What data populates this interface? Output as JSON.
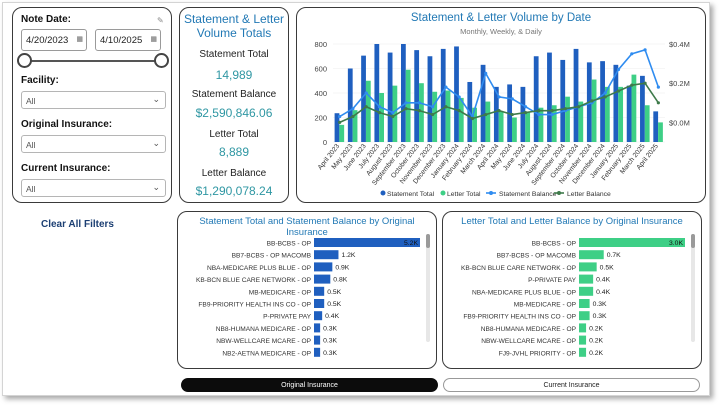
{
  "filters": {
    "note_date_label": "Note Date:",
    "start_date": "4/20/2023",
    "end_date": "4/10/2025",
    "facility_label": "Facility:",
    "facility_value": "All",
    "orig_ins_label": "Original Insurance:",
    "orig_ins_value": "All",
    "curr_ins_label": "Current Insurance:",
    "curr_ins_value": "All",
    "clear_label": "Clear All Filters"
  },
  "totals": {
    "title_line1": "Statement & Letter",
    "title_line2": "Volume Totals",
    "statement_total_label": "Statement Total",
    "statement_total_value": "14,989",
    "statement_balance_label": "Statement Balance",
    "statement_balance_value": "$2,590,846.06",
    "letter_total_label": "Letter Total",
    "letter_total_value": "8,889",
    "letter_balance_label": "Letter Balance",
    "letter_balance_value": "$1,290,078.24"
  },
  "colors": {
    "statement": "#1f5fbf",
    "letter": "#3ecf86",
    "statement_line": "#2f8cf0",
    "letter_line": "#3e7a4a",
    "title": "#2279b5",
    "value": "#2f97a3"
  },
  "chart_data": [
    {
      "type": "bar",
      "title": "Statement & Letter Volume by Date",
      "subtitle": "Monthly, Weekly, & Daily",
      "categories": [
        "April 2023",
        "May 2023",
        "June 2023",
        "July 2023",
        "August 2023",
        "September 2023",
        "October 2023",
        "November 2023",
        "December 2023",
        "January 2024",
        "February 2024",
        "March 2024",
        "April 2024",
        "May 2024",
        "June 2024",
        "July 2024",
        "August 2024",
        "September 2024",
        "October 2024",
        "November 2024",
        "December 2024",
        "January 2025",
        "February 2025",
        "March 2025",
        "April 2025"
      ],
      "y_ticks": [
        "0",
        "200",
        "400",
        "600",
        "800"
      ],
      "ylim": [
        0,
        800
      ],
      "y2_ticks": [
        "$0.0M",
        "$0.2M",
        "$0.4M"
      ],
      "y2lim": [
        -0.1,
        0.4
      ],
      "series": [
        {
          "name": "Statement Total",
          "kind": "bar",
          "values": [
            235,
            600,
            705,
            800,
            730,
            800,
            750,
            700,
            760,
            780,
            490,
            630,
            450,
            470,
            450,
            700,
            730,
            670,
            760,
            650,
            660,
            630,
            460,
            540,
            250
          ]
        },
        {
          "name": "Letter Total",
          "kind": "bar",
          "values": [
            140,
            260,
            500,
            400,
            460,
            590,
            480,
            410,
            420,
            360,
            280,
            330,
            250,
            200,
            240,
            280,
            300,
            370,
            330,
            510,
            450,
            450,
            550,
            300,
            160
          ]
        },
        {
          "name": "Statement Balance",
          "kind": "line",
          "axis": "y2",
          "values": [
            0.03,
            0.07,
            0.15,
            0.08,
            0.05,
            0.1,
            0.1,
            0.08,
            0.18,
            0.13,
            0.03,
            0.25,
            0.13,
            0.12,
            0.08,
            0.04,
            0.04,
            0.06,
            0.08,
            0.1,
            0.15,
            0.27,
            0.35,
            0.37,
            0.18
          ]
        },
        {
          "name": "Letter Balance",
          "kind": "line",
          "axis": "y2",
          "values": [
            0.0,
            0.03,
            0.08,
            0.05,
            0.03,
            0.07,
            0.06,
            0.04,
            0.08,
            0.06,
            0.02,
            0.04,
            0.06,
            0.04,
            0.05,
            0.06,
            0.06,
            0.07,
            0.08,
            0.11,
            0.13,
            0.16,
            0.19,
            0.2,
            0.1
          ]
        }
      ],
      "legend": [
        "Statement Total",
        "Letter Total",
        "Statement Balance",
        "Letter Balance"
      ],
      "legend_position": "bottom"
    },
    {
      "type": "bar",
      "orientation": "horizontal",
      "title": "Statement Total and Statement Balance by Original Insurance",
      "categories": [
        "BB-BCBS - OP",
        "BB7-BCBS - OP MACOMB",
        "NBA-MEDICARE PLUS BLUE - OP",
        "KB-BCN BLUE CARE NETWORK - OP",
        "MB-MEDICARE - OP",
        "FB9-PRIORITY HEALTH INS CO - OP",
        "P-PRIVATE PAY",
        "NB8-HUMANA MEDICARE - OP",
        "NBW-WELLCARE MCARE - OP",
        "NB2-AETNA MEDICARE - OP"
      ],
      "values": [
        5.2,
        1.2,
        0.9,
        0.8,
        0.5,
        0.5,
        0.4,
        0.3,
        0.3,
        0.3
      ],
      "value_labels": [
        "5.2K",
        "1.2K",
        "0.9K",
        "0.8K",
        "0.5K",
        "0.5K",
        "0.4K",
        "0.3K",
        "0.3K",
        "0.3K"
      ],
      "xlim": [
        0,
        5.2
      ]
    },
    {
      "type": "bar",
      "orientation": "horizontal",
      "title": "Letter Total and Letter Balance by Original Insurance",
      "categories": [
        "BB-BCBS - OP",
        "BB7-BCBS - OP MACOMB",
        "KB-BCN BLUE CARE NETWORK - OP",
        "P-PRIVATE PAY",
        "NBA-MEDICARE PLUS BLUE - OP",
        "MB-MEDICARE - OP",
        "FB9-PRIORITY HEALTH INS CO - OP",
        "NB8-HUMANA MEDICARE - OP",
        "NBW-WELLCARE MCARE - OP",
        "FJ9-JVHL PRIORITY - OP"
      ],
      "values": [
        3.0,
        0.7,
        0.5,
        0.4,
        0.4,
        0.3,
        0.3,
        0.2,
        0.2,
        0.2
      ],
      "value_labels": [
        "3.0K",
        "0.7K",
        "0.5K",
        "0.4K",
        "0.4K",
        "0.3K",
        "0.3K",
        "0.2K",
        "0.2K",
        "0.2K"
      ],
      "xlim": [
        0,
        3.0
      ]
    }
  ],
  "toggles": {
    "original_label": "Original Insurance",
    "current_label": "Current Insurance"
  }
}
